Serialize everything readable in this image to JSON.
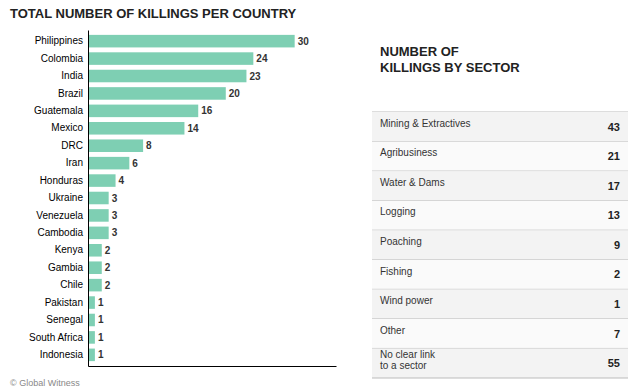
{
  "chart_data": [
    {
      "type": "bar",
      "orientation": "horizontal",
      "title": "TOTAL NUMBER OF KILLINGS PER COUNTRY",
      "categories": [
        "Philippines",
        "Colombia",
        "India",
        "Brazil",
        "Guatemala",
        "Mexico",
        "DRC",
        "Iran",
        "Honduras",
        "Ukraine",
        "Venezuela",
        "Cambodia",
        "Kenya",
        "Gambia",
        "Chile",
        "Pakistan",
        "Senegal",
        "South Africa",
        "Indonesia"
      ],
      "values": [
        30,
        24,
        23,
        20,
        16,
        14,
        8,
        6,
        4,
        3,
        3,
        3,
        2,
        2,
        2,
        1,
        1,
        1,
        1
      ],
      "color": "#7ecfb3",
      "xlim": [
        0,
        36
      ],
      "data_labels": true,
      "tick_labels": "y",
      "annotations": [
        "© Global Witness"
      ]
    },
    {
      "type": "table",
      "title": "NUMBER OF\nKILLINGS BY SECTOR",
      "categories": [
        "Mining & Extractives",
        "Agribusiness",
        "Water & Dams",
        "Logging",
        "Poaching",
        "Fishing",
        "Wind power",
        "Other",
        "No clear link\nto a sector"
      ],
      "values": [
        43,
        21,
        17,
        13,
        9,
        2,
        1,
        7,
        55
      ]
    }
  ]
}
